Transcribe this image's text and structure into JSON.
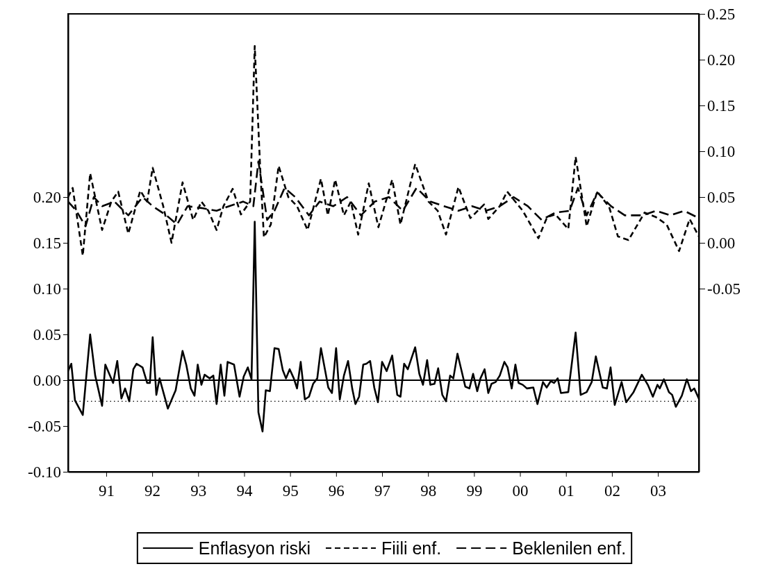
{
  "chart_data": {
    "type": "line",
    "legend": "bottom",
    "grid": false,
    "xlim": [
      1990.17,
      2003.89
    ],
    "xticks": [
      {
        "value": 1991,
        "label": "91"
      },
      {
        "value": 1992,
        "label": "92"
      },
      {
        "value": 1993,
        "label": "93"
      },
      {
        "value": 1994,
        "label": "94"
      },
      {
        "value": 1995,
        "label": "95"
      },
      {
        "value": 1996,
        "label": "96"
      },
      {
        "value": 1997,
        "label": "97"
      },
      {
        "value": 1998,
        "label": "98"
      },
      {
        "value": 1999,
        "label": "99"
      },
      {
        "value": 2000,
        "label": "00"
      },
      {
        "value": 2001,
        "label": "01"
      },
      {
        "value": 2002,
        "label": "02"
      },
      {
        "value": 2003,
        "label": "03"
      }
    ],
    "ylim": [
      -0.1,
      0.4
    ],
    "yticks": [
      {
        "value": -0.1,
        "label": "-0.10"
      },
      {
        "value": -0.05,
        "label": "-0.05"
      },
      {
        "value": 0,
        "label": "0.00"
      },
      {
        "value": 0.05,
        "label": "0.05"
      },
      {
        "value": 0.1,
        "label": "0.10"
      },
      {
        "value": 0.15,
        "label": "0.15"
      },
      {
        "value": 0.2,
        "label": "0.20"
      }
    ],
    "y2lim": [
      -0.25,
      0.25
    ],
    "y2ticks": [
      {
        "value": -0.05,
        "label": "-0.05"
      },
      {
        "value": 0,
        "label": "0.00"
      },
      {
        "value": 0.05,
        "label": "0.05"
      },
      {
        "value": 0.1,
        "label": "0.10"
      },
      {
        "value": 0.15,
        "label": "0.15"
      },
      {
        "value": 0.2,
        "label": "0.20"
      },
      {
        "value": 0.25,
        "label": "0.25"
      }
    ],
    "ref_lines": [
      {
        "axis": "y",
        "value": 0,
        "color": "#000000",
        "line_style": "solid"
      },
      {
        "axis": "y",
        "value": -0.023,
        "color": "#000000",
        "line_style": "dotted"
      }
    ],
    "series": [
      {
        "name": "Enflasyon riski",
        "color": "#000000",
        "line_style": "solid",
        "x": [
          1990.17,
          1990.24,
          1990.32,
          1990.49,
          1990.65,
          1990.76,
          1990.91,
          1990.98,
          1991.15,
          1991.24,
          1991.33,
          1991.41,
          1991.5,
          1991.59,
          1991.66,
          1991.79,
          1991.89,
          1991.95,
          1992.01,
          1992.09,
          1992.16,
          1992.34,
          1992.51,
          1992.66,
          1992.74,
          1992.84,
          1992.92,
          1992.99,
          1993.07,
          1993.14,
          1993.25,
          1993.33,
          1993.4,
          1993.49,
          1993.57,
          1993.64,
          1993.78,
          1993.9,
          1993.99,
          1994.08,
          1994.16,
          1994.23,
          1994.31,
          1994.4,
          1994.47,
          1994.56,
          1994.66,
          1994.75,
          1994.84,
          1994.91,
          1994.99,
          1995.08,
          1995.15,
          1995.23,
          1995.32,
          1995.41,
          1995.5,
          1995.59,
          1995.67,
          1995.76,
          1995.83,
          1995.91,
          1996,
          1996.08,
          1996.17,
          1996.26,
          1996.35,
          1996.42,
          1996.5,
          1996.59,
          1996.66,
          1996.74,
          1996.83,
          1996.91,
          1997,
          1997.1,
          1997.22,
          1997.33,
          1997.4,
          1997.48,
          1997.56,
          1997.72,
          1997.81,
          1997.89,
          1997.98,
          1998.05,
          1998.14,
          1998.22,
          1998.31,
          1998.39,
          1998.48,
          1998.55,
          1998.64,
          1998.73,
          1998.81,
          1998.9,
          1998.98,
          1999.07,
          1999.14,
          1999.23,
          1999.31,
          1999.38,
          1999.47,
          1999.56,
          1999.66,
          1999.73,
          1999.82,
          1999.9,
          1999.97,
          2000.06,
          2000.15,
          2000.29,
          2000.38,
          2000.5,
          2000.58,
          2000.67,
          2000.74,
          2000.82,
          2000.89,
          2001.05,
          2001.21,
          2001.32,
          2001.45,
          2001.56,
          2001.65,
          2001.8,
          2001.89,
          2001.97,
          2002.06,
          2002.21,
          2002.31,
          2002.47,
          2002.65,
          2002.78,
          2002.89,
          2002.99,
          2003.04,
          2003.13,
          2003.24,
          2003.31,
          2003.39,
          2003.52,
          2003.63,
          2003.72,
          2003.79,
          2003.89
        ],
        "values": [
          0.01,
          0.018,
          -0.022,
          -0.038,
          0.05,
          0.005,
          -0.028,
          0.017,
          -0.003,
          0.021,
          -0.02,
          -0.009,
          -0.023,
          0.012,
          0.018,
          0.014,
          -0.003,
          -0.003,
          0.047,
          -0.016,
          0.002,
          -0.031,
          -0.011,
          0.032,
          0.017,
          -0.009,
          -0.017,
          0.017,
          -0.005,
          0.006,
          0.002,
          0.005,
          -0.026,
          0.017,
          -0.017,
          0.02,
          0.017,
          -0.018,
          0.004,
          0.014,
          0.001,
          0.173,
          -0.035,
          -0.056,
          -0.011,
          -0.012,
          0.035,
          0.034,
          0.011,
          0.002,
          0.012,
          0.002,
          -0.009,
          0.02,
          -0.021,
          -0.018,
          -0.004,
          0.002,
          0.035,
          0.011,
          -0.008,
          -0.014,
          0.035,
          -0.021,
          0.005,
          0.021,
          -0.009,
          -0.026,
          -0.018,
          0.017,
          0.018,
          0.021,
          -0.008,
          -0.024,
          0.02,
          0.01,
          0.027,
          -0.016,
          -0.018,
          0.018,
          0.012,
          0.036,
          0.007,
          -0.005,
          0.022,
          -0.005,
          -0.004,
          0.013,
          -0.016,
          -0.023,
          0.005,
          0.002,
          0.029,
          0.01,
          -0.007,
          -0.009,
          0.007,
          -0.012,
          0.002,
          0.012,
          -0.014,
          -0.004,
          -0.002,
          0.005,
          0.02,
          0.014,
          -0.009,
          0.017,
          -0.003,
          -0.005,
          -0.009,
          -0.008,
          -0.026,
          -0.002,
          -0.008,
          -0.001,
          -0.003,
          0.002,
          -0.014,
          -0.013,
          0.052,
          -0.016,
          -0.013,
          -0.002,
          0.026,
          -0.008,
          -0.009,
          0.014,
          -0.027,
          -0.002,
          -0.024,
          -0.013,
          0.006,
          -0.005,
          -0.018,
          -0.005,
          -0.009,
          0.001,
          -0.013,
          -0.016,
          -0.029,
          -0.017,
          0.001,
          -0.012,
          -0.009,
          -0.02
        ]
      },
      {
        "name": "Fiili enf.",
        "color": "#000000",
        "line_style": "dashed",
        "axis": "y2",
        "x": [
          1990.17,
          1990.27,
          1990.49,
          1990.65,
          1990.91,
          1991.11,
          1991.26,
          1991.48,
          1991.74,
          1991.89,
          1992.01,
          1992.24,
          1992.42,
          1992.66,
          1992.89,
          1993.07,
          1993.22,
          1993.4,
          1993.55,
          1993.75,
          1993.93,
          1994.13,
          1994.23,
          1994.35,
          1994.43,
          1994.58,
          1994.75,
          1994.96,
          1995.15,
          1995.38,
          1995.67,
          1995.82,
          1995.98,
          1996.17,
          1996.32,
          1996.48,
          1996.71,
          1996.92,
          1997.22,
          1997.4,
          1997.72,
          1998.01,
          1998.21,
          1998.39,
          1998.66,
          1998.92,
          1999.22,
          1999.31,
          1999.56,
          1999.72,
          2000.06,
          2000.4,
          2000.59,
          2000.77,
          2001.05,
          2001.21,
          2001.45,
          2001.68,
          2001.94,
          2002.13,
          2002.36,
          2002.71,
          2002.96,
          2003.19,
          2003.46,
          2003.69,
          2003.89
        ],
        "values": [
          0.05,
          0.06,
          -0.014,
          0.076,
          0.014,
          0.045,
          0.056,
          0.01,
          0.057,
          0.045,
          0.082,
          0.04,
          0.0,
          0.066,
          0.025,
          0.045,
          0.035,
          0.014,
          0.04,
          0.059,
          0.031,
          0.045,
          0.215,
          0.08,
          0.006,
          0.02,
          0.084,
          0.05,
          0.04,
          0.014,
          0.07,
          0.03,
          0.069,
          0.03,
          0.045,
          0.009,
          0.065,
          0.017,
          0.069,
          0.02,
          0.086,
          0.045,
          0.035,
          0.009,
          0.061,
          0.027,
          0.042,
          0.026,
          0.04,
          0.056,
          0.035,
          0.005,
          0.028,
          0.031,
          0.015,
          0.094,
          0.018,
          0.056,
          0.039,
          0.007,
          0.003,
          0.033,
          0.028,
          0.02,
          -0.009,
          0.026,
          0.007
        ]
      },
      {
        "name": "Beklenilen enf.",
        "color": "#000000",
        "line_style": "dashed",
        "axis": "y2",
        "x": [
          1990.17,
          1990.35,
          1990.55,
          1990.73,
          1990.91,
          1991.18,
          1991.48,
          1991.79,
          1992.01,
          1992.31,
          1992.54,
          1992.77,
          1993.07,
          1993.4,
          1993.67,
          1993.98,
          1994.2,
          1994.31,
          1994.5,
          1994.66,
          1994.88,
          1995.11,
          1995.41,
          1995.64,
          1995.94,
          1996.24,
          1996.54,
          1996.84,
          1997.15,
          1997.45,
          1997.75,
          1998.05,
          1998.35,
          1998.66,
          1998.96,
          1999.26,
          1999.56,
          1999.86,
          2000.17,
          2000.47,
          2000.77,
          2001.08,
          2001.26,
          2001.45,
          2001.68,
          2001.98,
          2002.28,
          2002.66,
          2002.96,
          2003.27,
          2003.57,
          2003.89
        ],
        "values": [
          0.045,
          0.035,
          0.018,
          0.05,
          0.04,
          0.045,
          0.03,
          0.05,
          0.04,
          0.03,
          0.02,
          0.04,
          0.038,
          0.035,
          0.04,
          0.045,
          0.04,
          0.089,
          0.025,
          0.035,
          0.06,
          0.05,
          0.03,
          0.045,
          0.04,
          0.05,
          0.03,
          0.045,
          0.05,
          0.035,
          0.06,
          0.045,
          0.04,
          0.035,
          0.04,
          0.035,
          0.04,
          0.05,
          0.04,
          0.025,
          0.033,
          0.035,
          0.06,
          0.03,
          0.055,
          0.04,
          0.03,
          0.03,
          0.035,
          0.03,
          0.035,
          0.027
        ]
      }
    ]
  }
}
